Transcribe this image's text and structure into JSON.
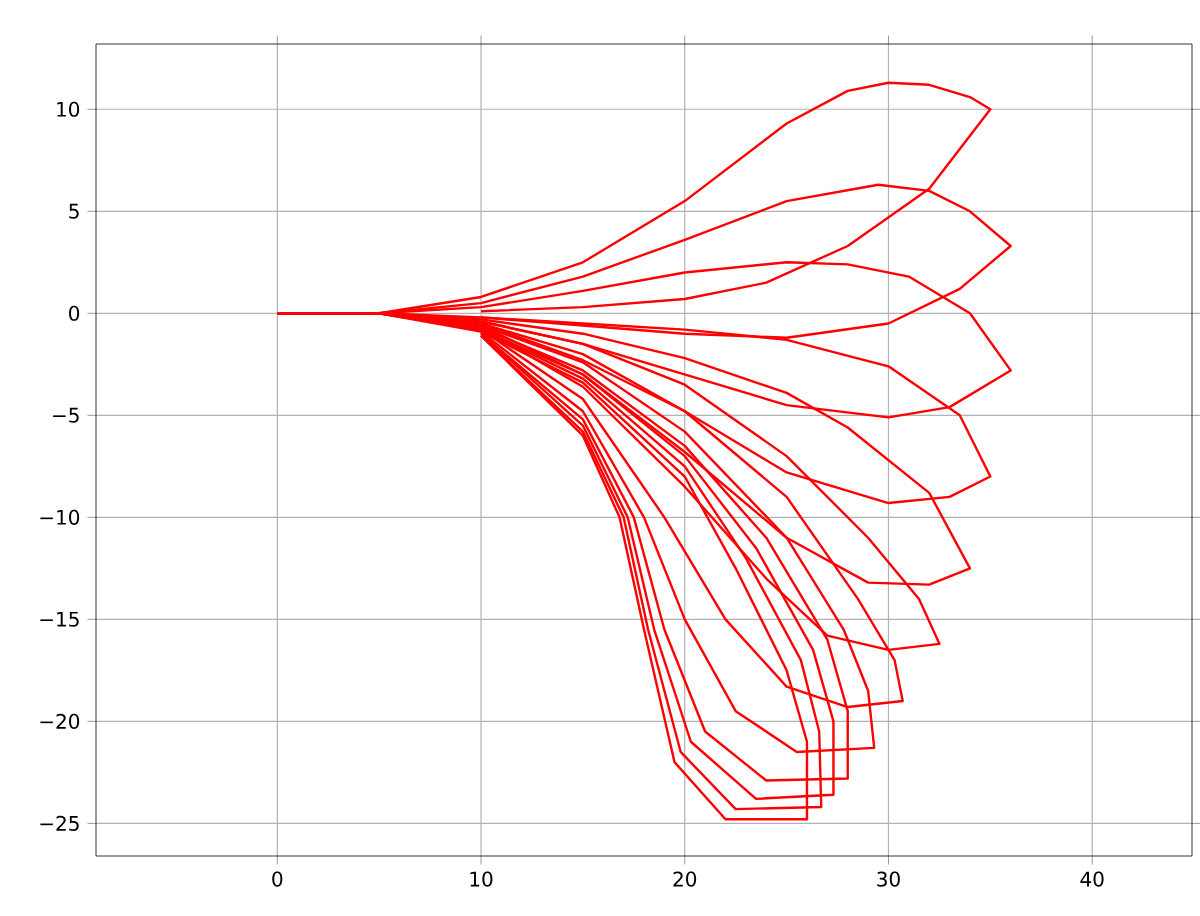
{
  "chart_data": {
    "type": "line",
    "xlim": [
      -8.9,
      44.9
    ],
    "ylim": [
      -26.6,
      13.2
    ],
    "xticks": [
      0,
      10,
      20,
      30,
      40
    ],
    "yticks": [
      {
        "value": -25,
        "label": "−25"
      },
      {
        "value": -20,
        "label": "−20"
      },
      {
        "value": -15,
        "label": "−15"
      },
      {
        "value": -10,
        "label": "−10"
      },
      {
        "value": -5,
        "label": "−5"
      },
      0,
      5,
      10
    ],
    "grid": true,
    "marker": "none",
    "line_style": "solid",
    "series": [
      {
        "color": "#ff0000",
        "x": [
          0,
          5,
          10,
          15,
          20,
          25,
          28,
          30,
          32,
          34,
          35,
          32,
          28,
          24,
          20,
          15,
          10
        ],
        "values": [
          0,
          0,
          0.8,
          2.5,
          5.5,
          9.3,
          10.9,
          11.3,
          11.2,
          10.6,
          10,
          6.1,
          3.3,
          1.5,
          0.7,
          0.3,
          0.1
        ]
      },
      {
        "color": "#ff0000",
        "x": [
          0,
          5,
          10,
          15,
          20,
          25,
          29.5,
          32,
          34,
          36,
          33.5,
          30,
          25,
          20,
          15,
          10
        ],
        "values": [
          0,
          0,
          0.5,
          1.8,
          3.6,
          5.5,
          6.3,
          6,
          5,
          3.3,
          1.2,
          -0.5,
          -1.2,
          -1.0,
          -0.6,
          -0.2
        ]
      },
      {
        "color": "#ff0000",
        "x": [
          0,
          5,
          10,
          15,
          20,
          25,
          28,
          31,
          34,
          36,
          33,
          30,
          25,
          19,
          15,
          10
        ],
        "values": [
          0,
          0,
          0.3,
          1.1,
          2,
          2.5,
          2.4,
          1.8,
          0,
          -2.8,
          -4.6,
          -5.1,
          -4.5,
          -2.7,
          -1.5,
          -0.4
        ]
      },
      {
        "color": "#ff0000",
        "x": [
          0,
          5,
          10,
          15,
          20,
          25,
          30,
          33.5,
          35,
          33,
          30,
          25,
          20,
          15,
          10
        ],
        "values": [
          0,
          0,
          -0.2,
          -0.5,
          -0.8,
          -1.3,
          -2.6,
          -5,
          -8,
          -9,
          -9.3,
          -7.8,
          -4.8,
          -2.3,
          -0.5
        ]
      },
      {
        "color": "#ff0000",
        "x": [
          0,
          5,
          10,
          15,
          20,
          25,
          28,
          32,
          34,
          32,
          29,
          25,
          20,
          15,
          10
        ],
        "values": [
          0,
          0,
          -0.3,
          -1,
          -2.2,
          -3.9,
          -5.6,
          -8.8,
          -12.5,
          -13.3,
          -13.2,
          -11,
          -6.8,
          -3,
          -0.6
        ]
      },
      {
        "color": "#ff0000",
        "x": [
          0,
          5,
          10,
          15,
          20,
          25,
          29,
          31.5,
          32.5,
          30,
          27,
          24,
          20,
          15,
          10
        ],
        "values": [
          0,
          0,
          -0.4,
          -1.5,
          -3.5,
          -7,
          -11,
          -14,
          -16.2,
          -16.5,
          -15.8,
          -13,
          -8.5,
          -3.6,
          -0.7
        ]
      },
      {
        "color": "#ff0000",
        "x": [
          0,
          5,
          10,
          15,
          20,
          25,
          28.5,
          30.3,
          30.7,
          28,
          25,
          22,
          19,
          15,
          10
        ],
        "values": [
          0,
          0,
          -0.5,
          -2,
          -4.8,
          -9,
          -14,
          -17,
          -19,
          -19.3,
          -18.3,
          -15,
          -10,
          -4.2,
          -0.8
        ]
      },
      {
        "color": "#ff0000",
        "x": [
          0,
          5,
          10,
          15,
          20,
          25,
          27.8,
          29,
          29.3,
          25.5,
          22.5,
          20,
          18,
          15,
          10
        ],
        "values": [
          0,
          0,
          -0.6,
          -2.4,
          -5.8,
          -11,
          -15.5,
          -18.5,
          -21.3,
          -21.5,
          -19.5,
          -15,
          -10,
          -4.8,
          -0.9
        ]
      },
      {
        "color": "#ff0000",
        "x": [
          0,
          5,
          10,
          15,
          20,
          24,
          27,
          28,
          28,
          24,
          21,
          19,
          17.5,
          15,
          10
        ],
        "values": [
          0,
          0,
          -0.7,
          -2.8,
          -6.5,
          -11,
          -16,
          -19.5,
          -22.8,
          -22.9,
          -20.5,
          -15.5,
          -10,
          -5.2,
          -1
        ]
      },
      {
        "color": "#ff0000",
        "x": [
          0,
          5,
          10,
          15,
          20,
          23.5,
          26.3,
          27.3,
          27.3,
          23.5,
          20.3,
          18.5,
          17.2,
          15,
          10
        ],
        "values": [
          0,
          0,
          -0.8,
          -3,
          -7,
          -11.5,
          -16.5,
          -20,
          -23.6,
          -23.8,
          -21,
          -15.5,
          -10,
          -5.5,
          -1
        ]
      },
      {
        "color": "#ff0000",
        "x": [
          0,
          5,
          10,
          15,
          20,
          23,
          25.7,
          26.6,
          26.7,
          22.5,
          19.8,
          18.2,
          17,
          15,
          10
        ],
        "values": [
          0,
          0,
          -0.8,
          -3.2,
          -7.5,
          -12,
          -17,
          -20.5,
          -24.2,
          -24.3,
          -21.5,
          -15.5,
          -10,
          -5.8,
          -1.1
        ]
      },
      {
        "color": "#ff0000",
        "x": [
          0,
          5,
          10,
          15,
          20,
          22.5,
          25,
          26,
          26,
          22,
          19.5,
          18,
          16.8,
          15,
          10
        ],
        "values": [
          0,
          0,
          -0.9,
          -3.4,
          -8,
          -12.5,
          -17.5,
          -21,
          -24.8,
          -24.8,
          -22,
          -15.5,
          -10,
          -6,
          -1.1
        ]
      }
    ]
  }
}
